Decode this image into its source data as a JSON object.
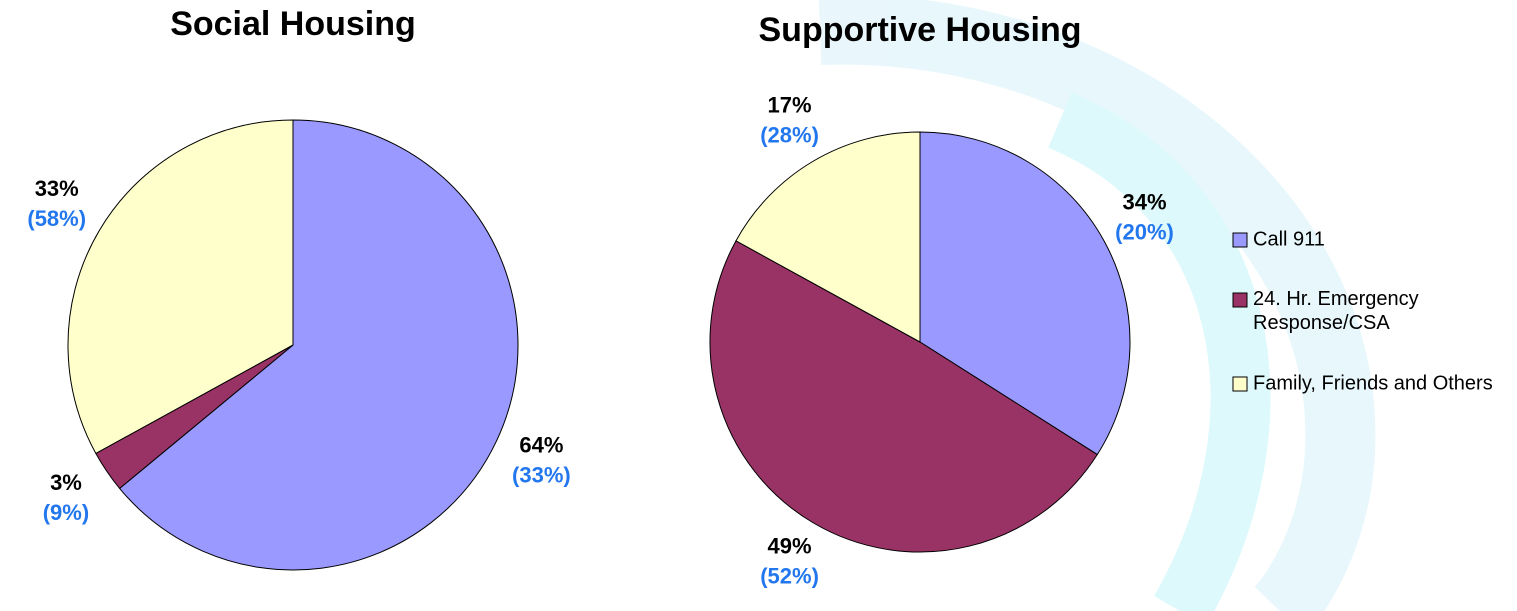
{
  "chart_data": [
    {
      "type": "pie",
      "title": "Social Housing",
      "values": [
        64,
        3,
        33
      ],
      "value_labels": [
        "64%",
        "3%",
        "33%"
      ],
      "comparison_values": [
        33,
        9,
        58
      ],
      "comparison_labels": [
        "(33%)",
        "(9%)",
        "(58%)"
      ],
      "colors": [
        "#9999ff",
        "#993366",
        "#ffffcc"
      ]
    },
    {
      "type": "pie",
      "title": "Supportive Housing",
      "categories": [
        "Call 911",
        "24. Hr. Emergency Response/CSA",
        "Family, Friends and Others"
      ],
      "values": [
        34,
        49,
        17
      ],
      "value_labels": [
        "34%",
        "49%",
        "17%"
      ],
      "comparison_values": [
        20,
        52,
        28
      ],
      "comparison_labels": [
        "(20%)",
        "(52%)",
        "(28%)"
      ],
      "colors": [
        "#9999ff",
        "#993366",
        "#ffffcc"
      ],
      "legend": "right"
    }
  ]
}
